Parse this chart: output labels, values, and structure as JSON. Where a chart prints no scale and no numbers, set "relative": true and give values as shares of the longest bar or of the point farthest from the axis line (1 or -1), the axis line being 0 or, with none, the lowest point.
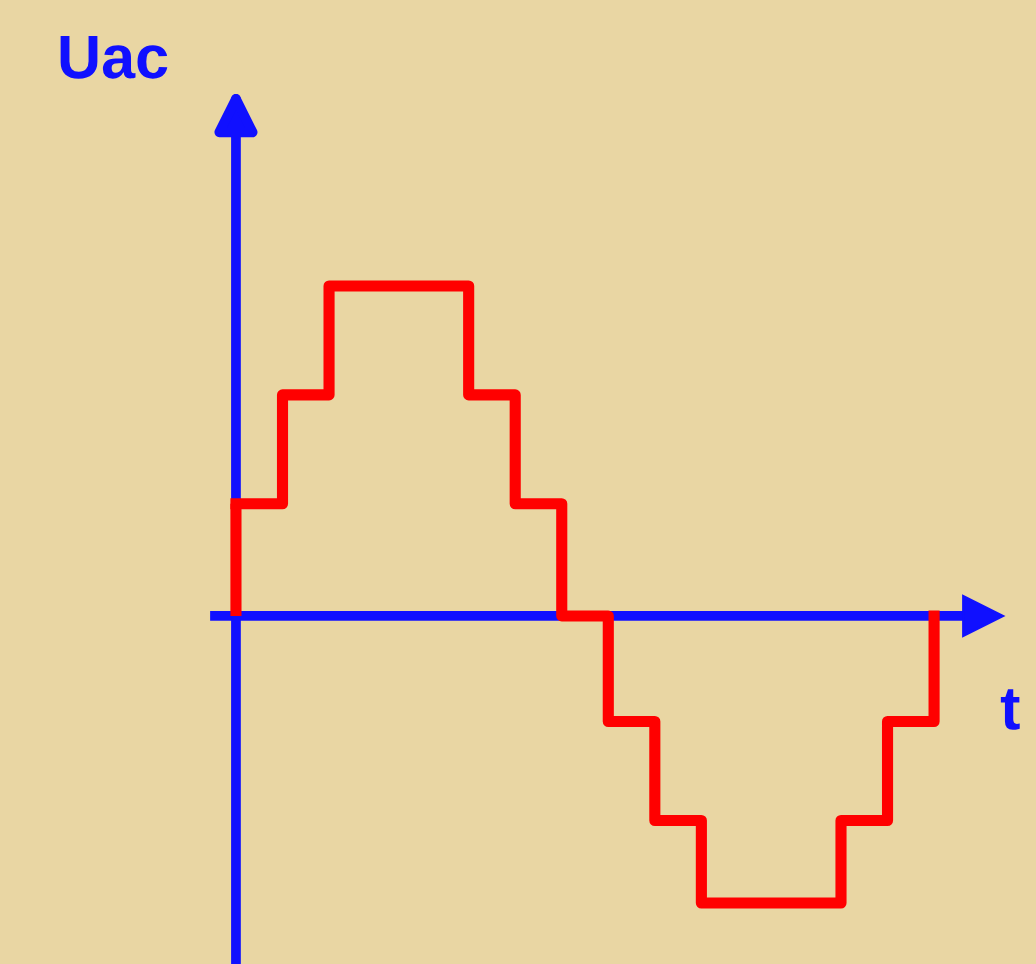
{
  "chart_data": {
    "type": "step",
    "relative": true,
    "xlabel": "t",
    "ylabel": "Uac",
    "ref_lines": [
      {
        "axis": "y",
        "value": 0,
        "color": "#1010ff"
      }
    ],
    "categories": [
      null,
      null,
      null,
      null,
      null,
      null,
      null,
      null,
      null,
      null,
      null,
      null,
      null,
      null,
      null,
      null
    ],
    "series": [
      {
        "color": "#ff0000",
        "values": [
          0.34,
          0.67,
          1,
          1,
          1,
          0.67,
          0.34,
          0,
          -0.32,
          -0.62,
          -0.87,
          -0.87,
          -0.87,
          -0.62,
          -0.32,
          0
        ]
      }
    ]
  }
}
